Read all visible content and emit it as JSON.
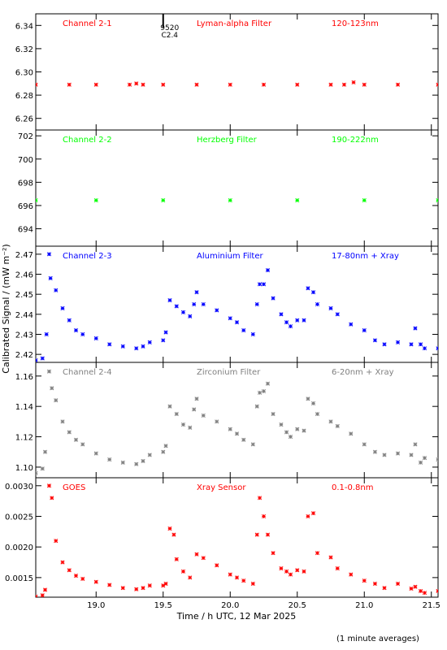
{
  "ylabel": "Calibrated Signal / (mW m⁻²)",
  "xlabel": "Time / h UTC, 12 Mar 2025",
  "footnote": "(1 minute averages)",
  "flare_annotation": {
    "x": 19.5,
    "lines": [
      "9520",
      "C2.4"
    ]
  },
  "x_axis": {
    "range": [
      18.55,
      21.55
    ],
    "ticks": [
      19.0,
      19.5,
      20.0,
      20.5,
      21.0,
      21.5
    ],
    "tick_labels": [
      "19.0",
      "19.5",
      "20.0",
      "20.5",
      "21.0",
      "21.5"
    ]
  },
  "chart_data": [
    {
      "type": "scatter",
      "channel": "Channel 2-1",
      "filter": "Lyman-alpha Filter",
      "band": "120-123nm",
      "color": "#ff0000",
      "ylim": [
        6.25,
        6.35
      ],
      "yticks": [
        6.26,
        6.28,
        6.3,
        6.32,
        6.34
      ],
      "ytick_labels": [
        "6.26",
        "6.28",
        "6.30",
        "6.32",
        "6.34"
      ],
      "points": [
        [
          18.55,
          6.289
        ],
        [
          18.8,
          6.289
        ],
        [
          19.0,
          6.289
        ],
        [
          19.25,
          6.289
        ],
        [
          19.3,
          6.29
        ],
        [
          19.35,
          6.289
        ],
        [
          19.5,
          6.289
        ],
        [
          19.75,
          6.289
        ],
        [
          20.0,
          6.289
        ],
        [
          20.25,
          6.289
        ],
        [
          20.5,
          6.289
        ],
        [
          20.75,
          6.289
        ],
        [
          20.85,
          6.289
        ],
        [
          20.92,
          6.291
        ],
        [
          21.0,
          6.289
        ],
        [
          21.25,
          6.289
        ],
        [
          21.55,
          6.289
        ]
      ]
    },
    {
      "type": "scatter",
      "channel": "Channel 2-2",
      "filter": "Herzberg Filter",
      "band": "190-222nm",
      "color": "#00ff00",
      "ylim": [
        692.5,
        702.5
      ],
      "yticks": [
        694,
        696,
        698,
        700,
        702
      ],
      "ytick_labels": [
        "694",
        "696",
        "698",
        "700",
        "702"
      ],
      "points": [
        [
          18.55,
          696.45
        ],
        [
          19.0,
          696.45
        ],
        [
          19.5,
          696.45
        ],
        [
          20.0,
          696.45
        ],
        [
          20.5,
          696.45
        ],
        [
          21.0,
          696.45
        ],
        [
          21.55,
          696.45
        ]
      ]
    },
    {
      "type": "scatter",
      "channel": "Channel 2-3",
      "filter": "Aluminium Filter",
      "band": "17-80nm + Xray",
      "color": "#0000ff",
      "ylim": [
        2.416,
        2.474
      ],
      "yticks": [
        2.42,
        2.43,
        2.44,
        2.45,
        2.46,
        2.47
      ],
      "ytick_labels": [
        "2.42",
        "2.43",
        "2.44",
        "2.45",
        "2.46",
        "2.47"
      ],
      "points": [
        [
          18.55,
          2.417
        ],
        [
          18.6,
          2.418
        ],
        [
          18.63,
          2.43
        ],
        [
          18.65,
          2.47
        ],
        [
          18.66,
          2.458
        ],
        [
          18.7,
          2.452
        ],
        [
          18.75,
          2.443
        ],
        [
          18.8,
          2.437
        ],
        [
          18.85,
          2.432
        ],
        [
          18.9,
          2.43
        ],
        [
          19.0,
          2.428
        ],
        [
          19.1,
          2.425
        ],
        [
          19.2,
          2.424
        ],
        [
          19.3,
          2.423
        ],
        [
          19.35,
          2.424
        ],
        [
          19.4,
          2.426
        ],
        [
          19.5,
          2.427
        ],
        [
          19.52,
          2.431
        ],
        [
          19.55,
          2.447
        ],
        [
          19.6,
          2.444
        ],
        [
          19.65,
          2.441
        ],
        [
          19.7,
          2.439
        ],
        [
          19.73,
          2.445
        ],
        [
          19.75,
          2.451
        ],
        [
          19.8,
          2.445
        ],
        [
          19.9,
          2.442
        ],
        [
          20.0,
          2.438
        ],
        [
          20.05,
          2.436
        ],
        [
          20.1,
          2.432
        ],
        [
          20.17,
          2.43
        ],
        [
          20.2,
          2.445
        ],
        [
          20.22,
          2.455
        ],
        [
          20.25,
          2.455
        ],
        [
          20.28,
          2.462
        ],
        [
          20.32,
          2.448
        ],
        [
          20.38,
          2.44
        ],
        [
          20.42,
          2.436
        ],
        [
          20.45,
          2.434
        ],
        [
          20.5,
          2.437
        ],
        [
          20.55,
          2.437
        ],
        [
          20.58,
          2.453
        ],
        [
          20.62,
          2.451
        ],
        [
          20.65,
          2.445
        ],
        [
          20.75,
          2.443
        ],
        [
          20.8,
          2.44
        ],
        [
          20.9,
          2.435
        ],
        [
          21.0,
          2.432
        ],
        [
          21.08,
          2.427
        ],
        [
          21.15,
          2.425
        ],
        [
          21.25,
          2.426
        ],
        [
          21.35,
          2.425
        ],
        [
          21.38,
          2.433
        ],
        [
          21.42,
          2.425
        ],
        [
          21.45,
          2.423
        ],
        [
          21.55,
          2.423
        ]
      ]
    },
    {
      "type": "scatter",
      "channel": "Channel 2-4",
      "filter": "Zirconium Filter",
      "band": "6-20nm + Xray",
      "color": "#808080",
      "ylim": [
        1.093,
        1.169
      ],
      "yticks": [
        1.1,
        1.12,
        1.14,
        1.16
      ],
      "ytick_labels": [
        "1.10",
        "1.12",
        "1.14",
        "1.16"
      ],
      "points": [
        [
          18.55,
          1.096
        ],
        [
          18.6,
          1.099
        ],
        [
          18.62,
          1.11
        ],
        [
          18.65,
          1.163
        ],
        [
          18.67,
          1.152
        ],
        [
          18.7,
          1.144
        ],
        [
          18.75,
          1.13
        ],
        [
          18.8,
          1.123
        ],
        [
          18.85,
          1.118
        ],
        [
          18.9,
          1.115
        ],
        [
          19.0,
          1.109
        ],
        [
          19.1,
          1.105
        ],
        [
          19.2,
          1.103
        ],
        [
          19.3,
          1.102
        ],
        [
          19.35,
          1.104
        ],
        [
          19.4,
          1.108
        ],
        [
          19.5,
          1.11
        ],
        [
          19.52,
          1.114
        ],
        [
          19.55,
          1.14
        ],
        [
          19.6,
          1.135
        ],
        [
          19.65,
          1.128
        ],
        [
          19.7,
          1.126
        ],
        [
          19.73,
          1.138
        ],
        [
          19.75,
          1.145
        ],
        [
          19.8,
          1.134
        ],
        [
          19.9,
          1.13
        ],
        [
          20.0,
          1.125
        ],
        [
          20.05,
          1.122
        ],
        [
          20.1,
          1.118
        ],
        [
          20.17,
          1.115
        ],
        [
          20.2,
          1.14
        ],
        [
          20.22,
          1.149
        ],
        [
          20.25,
          1.15
        ],
        [
          20.28,
          1.155
        ],
        [
          20.32,
          1.135
        ],
        [
          20.38,
          1.128
        ],
        [
          20.42,
          1.123
        ],
        [
          20.45,
          1.12
        ],
        [
          20.5,
          1.125
        ],
        [
          20.55,
          1.124
        ],
        [
          20.58,
          1.145
        ],
        [
          20.62,
          1.142
        ],
        [
          20.65,
          1.135
        ],
        [
          20.75,
          1.13
        ],
        [
          20.8,
          1.127
        ],
        [
          20.9,
          1.122
        ],
        [
          21.0,
          1.115
        ],
        [
          21.08,
          1.11
        ],
        [
          21.15,
          1.108
        ],
        [
          21.25,
          1.109
        ],
        [
          21.35,
          1.108
        ],
        [
          21.38,
          1.115
        ],
        [
          21.42,
          1.103
        ],
        [
          21.45,
          1.106
        ],
        [
          21.55,
          1.105
        ]
      ]
    },
    {
      "type": "scatter",
      "channel": "GOES",
      "filter": "Xray Sensor",
      "band": "0.1-0.8nm",
      "color": "#ff0000",
      "ylim": [
        0.00118,
        0.00313
      ],
      "yticks": [
        0.0015,
        0.002,
        0.0025,
        0.003
      ],
      "ytick_labels": [
        "0.0015",
        "0.0020",
        "0.0025",
        "0.0030"
      ],
      "points": [
        [
          18.55,
          0.00119
        ],
        [
          18.6,
          0.00121
        ],
        [
          18.62,
          0.0013
        ],
        [
          18.65,
          0.003
        ],
        [
          18.67,
          0.0028
        ],
        [
          18.7,
          0.0021
        ],
        [
          18.75,
          0.00175
        ],
        [
          18.8,
          0.00162
        ],
        [
          18.85,
          0.00153
        ],
        [
          18.9,
          0.00148
        ],
        [
          19.0,
          0.00143
        ],
        [
          19.1,
          0.00138
        ],
        [
          19.2,
          0.00133
        ],
        [
          19.3,
          0.00131
        ],
        [
          19.35,
          0.00133
        ],
        [
          19.4,
          0.00137
        ],
        [
          19.5,
          0.00137
        ],
        [
          19.52,
          0.0014
        ],
        [
          19.55,
          0.0023
        ],
        [
          19.58,
          0.0022
        ],
        [
          19.6,
          0.0018
        ],
        [
          19.65,
          0.0016
        ],
        [
          19.7,
          0.0015
        ],
        [
          19.75,
          0.00188
        ],
        [
          19.8,
          0.00182
        ],
        [
          19.9,
          0.0017
        ],
        [
          20.0,
          0.00155
        ],
        [
          20.05,
          0.0015
        ],
        [
          20.1,
          0.00145
        ],
        [
          20.17,
          0.0014
        ],
        [
          20.2,
          0.0022
        ],
        [
          20.22,
          0.0028
        ],
        [
          20.25,
          0.0025
        ],
        [
          20.28,
          0.0022
        ],
        [
          20.32,
          0.0019
        ],
        [
          20.38,
          0.00165
        ],
        [
          20.42,
          0.0016
        ],
        [
          20.45,
          0.00155
        ],
        [
          20.5,
          0.00162
        ],
        [
          20.55,
          0.0016
        ],
        [
          20.58,
          0.0025
        ],
        [
          20.62,
          0.00255
        ],
        [
          20.65,
          0.0019
        ],
        [
          20.75,
          0.00183
        ],
        [
          20.8,
          0.00165
        ],
        [
          20.9,
          0.00155
        ],
        [
          21.0,
          0.00145
        ],
        [
          21.08,
          0.0014
        ],
        [
          21.15,
          0.00133
        ],
        [
          21.25,
          0.0014
        ],
        [
          21.35,
          0.00132
        ],
        [
          21.38,
          0.00135
        ],
        [
          21.42,
          0.00128
        ],
        [
          21.45,
          0.00125
        ],
        [
          21.55,
          0.00128
        ]
      ]
    }
  ]
}
